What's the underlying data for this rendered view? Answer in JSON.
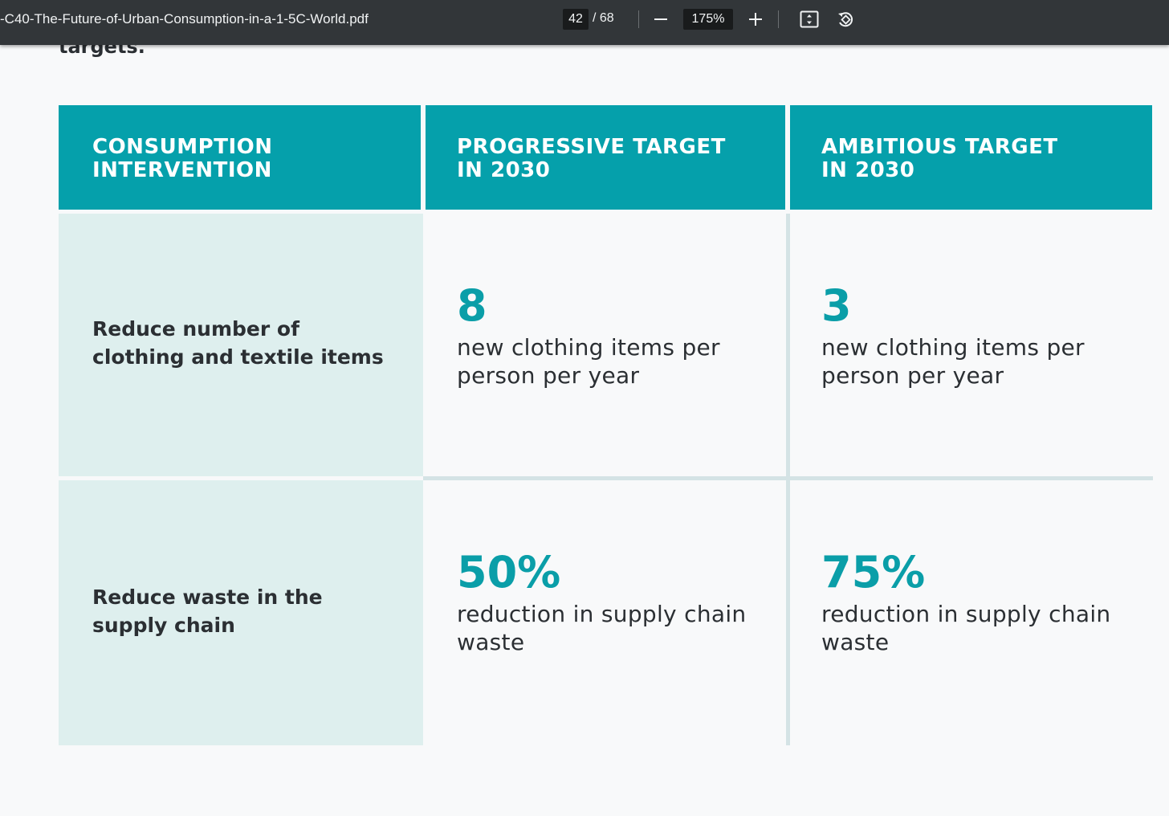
{
  "toolbar": {
    "doc_title": "-C40-The-Future-of-Urban-Consumption-in-a-1-5C-World.pdf",
    "page_current": "42",
    "page_total": "/ 68",
    "zoom_value": "175%",
    "icons": [
      "zoom-out-icon",
      "zoom-in-icon",
      "fit-page-icon",
      "rotate-icon"
    ]
  },
  "document": {
    "intro_text": "targets.",
    "table": {
      "headers": [
        [
          "CONSUMPTION",
          "INTERVENTION"
        ],
        [
          "PROGRESSIVE TARGET",
          "IN 2030"
        ],
        [
          "AMBITIOUS TARGET",
          "IN 2030"
        ]
      ],
      "rows": [
        {
          "intervention": "Reduce number of clothing and textile items",
          "progressive_value": "8",
          "progressive_desc": "new clothing items per person per year",
          "ambitious_value": "3",
          "ambitious_desc": "new clothing items per person per year"
        },
        {
          "intervention": "Reduce waste in the supply chain",
          "progressive_value": "50%",
          "progressive_desc": "reduction in supply chain waste",
          "ambitious_value": "75%",
          "ambitious_desc": "reduction in supply chain waste"
        }
      ]
    }
  },
  "colors": {
    "toolbar_bg": "#323639",
    "header_teal": "#05a0ab",
    "label_cell_bg": "#deefee",
    "value_teal": "#0a9ea8"
  }
}
